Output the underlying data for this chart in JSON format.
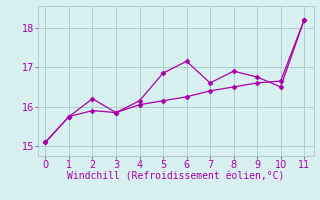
{
  "series1_x": [
    0,
    1,
    2,
    3,
    4,
    5,
    6,
    7,
    8,
    9,
    10,
    11
  ],
  "series1_y": [
    15.1,
    15.75,
    15.9,
    15.85,
    16.05,
    16.15,
    16.25,
    16.4,
    16.5,
    16.6,
    16.65,
    18.2
  ],
  "series2_x": [
    0,
    1,
    2,
    3,
    4,
    5,
    6,
    7,
    8,
    9,
    10,
    11
  ],
  "series2_y": [
    15.1,
    15.75,
    16.2,
    15.85,
    16.15,
    16.85,
    17.15,
    16.6,
    16.9,
    16.75,
    16.5,
    18.2
  ],
  "line_color": "#aa00aa",
  "marker": "D",
  "markersize": 2.5,
  "linewidth": 0.9,
  "linestyle": "-",
  "xlabel": "Windchill (Refroidissement éolien,°C)",
  "xlabel_fontsize": 7,
  "xlabel_color": "#aa00aa",
  "ylabel_ticks": [
    15,
    16,
    17,
    18
  ],
  "xtick_labels": [
    "0",
    "1",
    "2",
    "3",
    "4",
    "5",
    "6",
    "7",
    "8",
    "9",
    "10",
    "11"
  ],
  "xlim": [
    -0.3,
    11.4
  ],
  "ylim": [
    14.75,
    18.55
  ],
  "bg_color": "#d8f0f0",
  "grid_color": "#aacece",
  "tick_color": "#aa00aa",
  "tick_fontsize": 7
}
